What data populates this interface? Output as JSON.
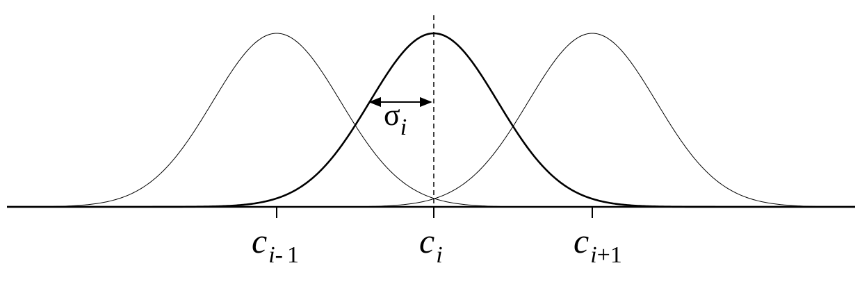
{
  "diagram": {
    "centers": [
      {
        "main": "c",
        "sub_var": "i",
        "sub_op": "-",
        "sub_num": "1"
      },
      {
        "main": "c",
        "sub_var": "i",
        "sub_op": "",
        "sub_num": ""
      },
      {
        "main": "c",
        "sub_var": "i",
        "sub_op": "+",
        "sub_num": "1"
      }
    ],
    "sigma": {
      "symbol": "σ",
      "sub": "i"
    },
    "highlighted_curve_index": 1
  }
}
